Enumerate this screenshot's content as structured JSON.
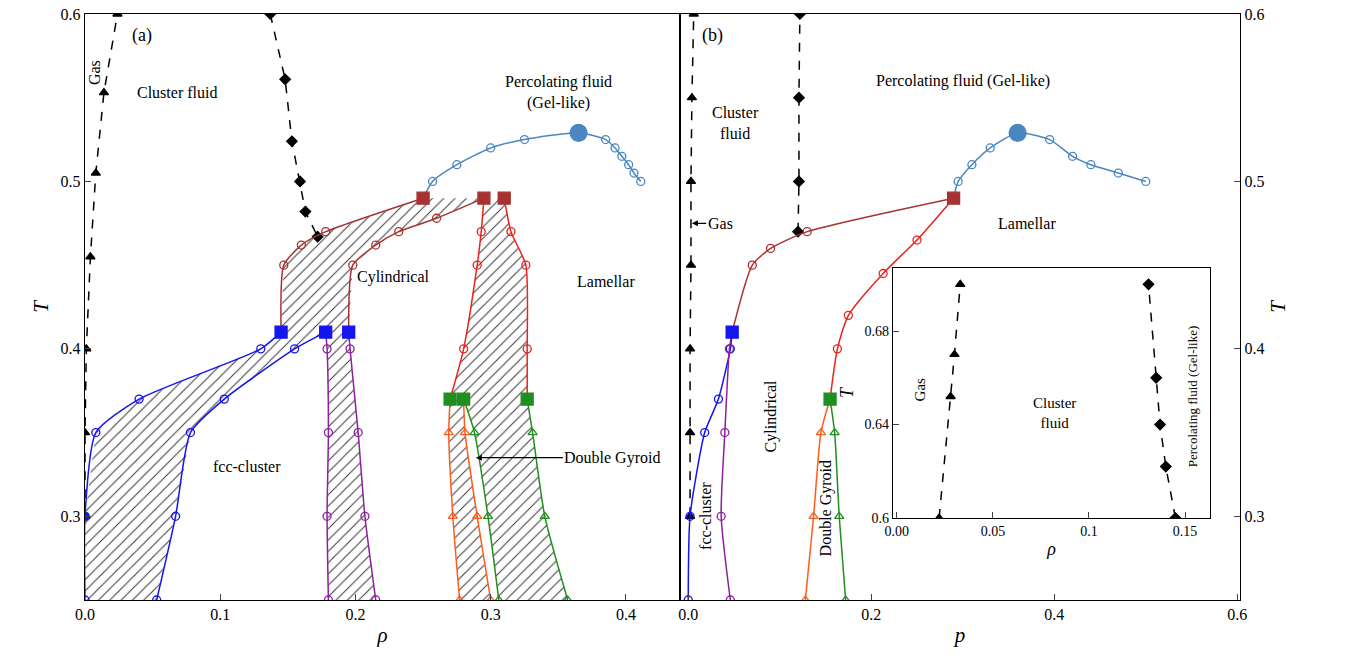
{
  "chart_data": [
    {
      "type": "scatter",
      "title": "(a)",
      "xlabel": "ρ",
      "ylabel": "T",
      "xlim": [
        0,
        0.44
      ],
      "ylim": [
        0.25,
        0.6
      ],
      "xticks": [
        {
          "value": 0,
          "label": "0.0"
        },
        0.1,
        0.2,
        0.3,
        0.4
      ],
      "yticks": [
        0.3,
        0.4,
        0.5,
        0.6
      ],
      "grid": false,
      "hatched_regions": [
        {
          "x": [
            0,
            0,
            0.008,
            0.04,
            0.13,
            0.145,
            0.178,
            0.155,
            0.103,
            0.078,
            0.067,
            0.053
          ],
          "y": [
            0.25,
            0.3,
            0.35,
            0.37,
            0.4,
            0.41,
            0.41,
            0.4,
            0.37,
            0.35,
            0.3,
            0.25
          ]
        },
        {
          "x": [
            0.145,
            0.147,
            0.16,
            0.178,
            0.25,
            0.295,
            0.26,
            0.232,
            0.215,
            0.198,
            0.195
          ],
          "y": [
            0.41,
            0.45,
            0.462,
            0.47,
            0.49,
            0.49,
            0.478,
            0.47,
            0.462,
            0.45,
            0.41
          ]
        },
        {
          "x": [
            0.178,
            0.179,
            0.18,
            0.179,
            0.18,
            0.215,
            0.207,
            0.202,
            0.196,
            0.195
          ],
          "y": [
            0.41,
            0.4,
            0.35,
            0.3,
            0.25,
            0.25,
            0.3,
            0.35,
            0.4,
            0.41
          ]
        },
        {
          "x": [
            0.295,
            0.293,
            0.29,
            0.28,
            0.27,
            0.327,
            0.327,
            0.326,
            0.315,
            0.31
          ],
          "y": [
            0.49,
            0.47,
            0.45,
            0.4,
            0.37,
            0.37,
            0.4,
            0.45,
            0.47,
            0.49
          ]
        },
        {
          "x": [
            0.27,
            0.269,
            0.272,
            0.277,
            0.3,
            0.29,
            0.281,
            0.28
          ],
          "y": [
            0.37,
            0.35,
            0.3,
            0.25,
            0.25,
            0.3,
            0.35,
            0.37
          ]
        },
        {
          "x": [
            0.28,
            0.288,
            0.298,
            0.306,
            0.357,
            0.34,
            0.331,
            0.327
          ],
          "y": [
            0.37,
            0.35,
            0.3,
            0.25,
            0.25,
            0.3,
            0.35,
            0.37
          ]
        }
      ],
      "series": [
        {
          "color": "#000000",
          "marker": "triangle-up",
          "line_style": "dashed",
          "x": [
            0,
            0,
            0.001,
            0.004,
            0.008,
            0.014,
            0.024
          ],
          "values": [
            0.3,
            0.35,
            0.4,
            0.455,
            0.505,
            0.553,
            0.6
          ]
        },
        {
          "color": "#000000",
          "marker": "diamond",
          "line_style": "dashed",
          "x": [
            0.137,
            0.148,
            0.153,
            0.159,
            0.163,
            0.172
          ],
          "values": [
            0.6,
            0.561,
            0.524,
            0.5,
            0.482,
            0.467
          ]
        },
        {
          "color": "#1515f0",
          "marker": "circle-open",
          "line_style": "solid",
          "x": [
            0,
            0,
            0.008,
            0.04,
            0.13,
            0.145
          ],
          "values": [
            0.25,
            0.3,
            0.35,
            0.37,
            0.4,
            0.41
          ]
        },
        {
          "color": "#1515f0",
          "marker": "circle-open",
          "line_style": "solid",
          "x": [
            0.053,
            0.067,
            0.078,
            0.103,
            0.155,
            0.178
          ],
          "values": [
            0.25,
            0.3,
            0.35,
            0.37,
            0.4,
            0.41
          ]
        },
        {
          "color": "#8e1f9e",
          "marker": "circle-open",
          "line_style": "solid",
          "x": [
            0.178,
            0.179,
            0.18,
            0.179,
            0.18
          ],
          "values": [
            0.41,
            0.4,
            0.35,
            0.3,
            0.25
          ]
        },
        {
          "color": "#8e1f9e",
          "marker": "circle-open",
          "line_style": "solid",
          "x": [
            0.195,
            0.196,
            0.202,
            0.207,
            0.215
          ],
          "values": [
            0.41,
            0.4,
            0.35,
            0.3,
            0.25
          ]
        },
        {
          "color": "#a83232",
          "marker": "circle-open",
          "line_style": "solid",
          "x": [
            0.145,
            0.147,
            0.16,
            0.178,
            0.25
          ],
          "values": [
            0.41,
            0.45,
            0.462,
            0.47,
            0.49
          ]
        },
        {
          "color": "#a83232",
          "marker": "circle-open",
          "line_style": "solid",
          "x": [
            0.195,
            0.198,
            0.215,
            0.232,
            0.26,
            0.295
          ],
          "values": [
            0.41,
            0.45,
            0.462,
            0.47,
            0.478,
            0.49
          ]
        },
        {
          "color": "#e8241c",
          "marker": "circle-open",
          "line_style": "solid",
          "x": [
            0.295,
            0.293,
            0.29,
            0.28,
            0.27
          ],
          "values": [
            0.49,
            0.47,
            0.45,
            0.4,
            0.37
          ]
        },
        {
          "color": "#e8241c",
          "marker": "circle-open",
          "line_style": "solid",
          "x": [
            0.31,
            0.315,
            0.326,
            0.327,
            0.327
          ],
          "values": [
            0.49,
            0.47,
            0.45,
            0.4,
            0.37
          ]
        },
        {
          "color": "#ff5b1a",
          "marker": "triangle-up-open",
          "line_style": "solid",
          "x": [
            0.27,
            0.269,
            0.272,
            0.277
          ],
          "values": [
            0.37,
            0.35,
            0.3,
            0.25
          ]
        },
        {
          "color": "#ff5b1a",
          "marker": "triangle-up-open",
          "line_style": "solid",
          "x": [
            0.28,
            0.281,
            0.29,
            0.3
          ],
          "values": [
            0.37,
            0.35,
            0.3,
            0.25
          ]
        },
        {
          "color": "#1f8f1f",
          "marker": "triangle-up-open",
          "line_style": "solid",
          "x": [
            0.28,
            0.288,
            0.298,
            0.306
          ],
          "values": [
            0.37,
            0.35,
            0.3,
            0.25
          ]
        },
        {
          "color": "#1f8f1f",
          "marker": "triangle-up-open",
          "line_style": "solid",
          "x": [
            0.327,
            0.331,
            0.34,
            0.357
          ],
          "values": [
            0.37,
            0.35,
            0.3,
            0.25
          ]
        },
        {
          "color": "#4a86c0",
          "marker": "circle-open",
          "line_style": "solid",
          "x": [
            0.25,
            0.257,
            0.275,
            0.3,
            0.325,
            0.365,
            0.385,
            0.392,
            0.397,
            0.402,
            0.406,
            0.411
          ],
          "values": [
            0.49,
            0.5,
            0.51,
            0.52,
            0.525,
            0.529,
            0.525,
            0.52,
            0.515,
            0.51,
            0.505,
            0.5
          ]
        },
        {
          "color": "#4a86c0",
          "marker": "circle",
          "line_style": "none",
          "x": [
            0.365
          ],
          "values": [
            0.529
          ]
        },
        {
          "color": "#1515f0",
          "marker": "circle",
          "line_style": "none",
          "x": [
            0
          ],
          "values": [
            0.3
          ]
        },
        {
          "color": "#a83232",
          "marker": "square",
          "line_style": "none",
          "x": [
            0.25,
            0.295,
            0.31
          ],
          "values": [
            0.49,
            0.49,
            0.49
          ]
        },
        {
          "color": "#1515f0",
          "marker": "square",
          "line_style": "none",
          "x": [
            0.145,
            0.178,
            0.195
          ],
          "values": [
            0.41,
            0.41,
            0.41
          ]
        },
        {
          "color": "#1f8f1f",
          "marker": "square",
          "line_style": "none",
          "x": [
            0.27,
            0.28,
            0.327
          ],
          "values": [
            0.37,
            0.37,
            0.37
          ]
        }
      ],
      "annotations": [
        {
          "text": "Gas",
          "x": 0.007,
          "y": 0.565,
          "orientation": "vertical"
        },
        {
          "text": "Cluster fluid",
          "x": 0.068,
          "y": 0.553
        },
        {
          "text": [
            "Percolating fluid",
            "(Gel-like)"
          ],
          "x": 0.35,
          "y": 0.553
        },
        {
          "text": "Cylindrical",
          "x": 0.228,
          "y": 0.443
        },
        {
          "text": "Lamellar",
          "x": 0.385,
          "y": 0.44
        },
        {
          "text": "fcc-cluster",
          "x": 0.12,
          "y": 0.33
        },
        {
          "text": "Double Gyroid",
          "x": 0.39,
          "y": 0.335,
          "arrow_to": [
            0.289,
            0.335
          ]
        }
      ]
    },
    {
      "type": "scatter",
      "title": "(b)",
      "xlabel": "p",
      "ylabel": "T",
      "xlim": [
        -0.009,
        0.603
      ],
      "ylim": [
        0.25,
        0.6
      ],
      "xticks": [
        {
          "value": 0,
          "label": "0.0"
        },
        0.2,
        0.4,
        0.6
      ],
      "yticks": [
        0.3,
        0.4,
        0.5,
        0.6
      ],
      "grid": false,
      "series": [
        {
          "color": "#000000",
          "marker": "triangle-up",
          "line_style": "dashed",
          "x": [
            0.002,
            0.002,
            0.002,
            0.003,
            0.003,
            0.004,
            0.006
          ],
          "values": [
            0.3,
            0.35,
            0.4,
            0.45,
            0.5,
            0.55,
            0.6
          ]
        },
        {
          "color": "#000000",
          "marker": "diamond",
          "line_style": "dashed",
          "x": [
            0.12,
            0.121,
            0.121,
            0.122
          ],
          "values": [
            0.47,
            0.5,
            0.55,
            0.6
          ]
        },
        {
          "color": "#1515f0",
          "marker": "circle-open",
          "line_style": "solid",
          "x": [
            0,
            0.002,
            0.018,
            0.033,
            0.046,
            0.048
          ],
          "values": [
            0.25,
            0.3,
            0.35,
            0.37,
            0.4,
            0.41
          ]
        },
        {
          "color": "#8e1f9e",
          "marker": "circle-open",
          "line_style": "solid",
          "x": [
            0.048,
            0.045,
            0.04,
            0.036,
            0.046
          ],
          "values": [
            0.41,
            0.4,
            0.35,
            0.3,
            0.25
          ]
        },
        {
          "color": "#a83232",
          "marker": "circle-open",
          "line_style": "solid",
          "x": [
            0.048,
            0.07,
            0.09,
            0.13,
            0.29
          ],
          "values": [
            0.41,
            0.45,
            0.46,
            0.47,
            0.49
          ]
        },
        {
          "color": "#e8241c",
          "marker": "circle-open",
          "line_style": "solid",
          "x": [
            0.29,
            0.25,
            0.213,
            0.175,
            0.163,
            0.155
          ],
          "values": [
            0.49,
            0.465,
            0.445,
            0.42,
            0.4,
            0.37
          ]
        },
        {
          "color": "#ff5b1a",
          "marker": "triangle-up-open",
          "line_style": "solid",
          "x": [
            0.155,
            0.145,
            0.137,
            0.128
          ],
          "values": [
            0.37,
            0.35,
            0.3,
            0.25
          ]
        },
        {
          "color": "#1f8f1f",
          "marker": "triangle-up-open",
          "line_style": "solid",
          "x": [
            0.155,
            0.16,
            0.165,
            0.172
          ],
          "values": [
            0.37,
            0.35,
            0.3,
            0.25
          ]
        },
        {
          "color": "#4a86c0",
          "marker": "circle-open",
          "line_style": "solid",
          "x": [
            0.29,
            0.295,
            0.31,
            0.33,
            0.36,
            0.395,
            0.42,
            0.44,
            0.47,
            0.5
          ],
          "values": [
            0.49,
            0.5,
            0.51,
            0.52,
            0.529,
            0.525,
            0.515,
            0.51,
            0.505,
            0.5
          ]
        },
        {
          "color": "#4a86c0",
          "marker": "circle",
          "line_style": "none",
          "x": [
            0.36
          ],
          "values": [
            0.529
          ]
        },
        {
          "color": "#a83232",
          "marker": "square",
          "line_style": "none",
          "x": [
            0.29
          ],
          "values": [
            0.49
          ]
        },
        {
          "color": "#1515f0",
          "marker": "square",
          "line_style": "none",
          "x": [
            0.048
          ],
          "values": [
            0.41
          ]
        },
        {
          "color": "#1f8f1f",
          "marker": "square",
          "line_style": "none",
          "x": [
            0.155
          ],
          "values": [
            0.37
          ]
        }
      ],
      "annotations": [
        {
          "text": [
            "Cluster",
            "fluid"
          ],
          "x": 0.052,
          "y": 0.535
        },
        {
          "text": "Percolating fluid (Gel-like)",
          "x": 0.3,
          "y": 0.56
        },
        {
          "text": "Lamellar",
          "x": 0.37,
          "y": 0.475
        },
        {
          "text": "Gas",
          "x": 0.035,
          "y": 0.475,
          "arrow_to": [
            0.004,
            0.475
          ]
        },
        {
          "text": "fcc-cluster",
          "x": 0.019,
          "y": 0.3,
          "orientation": "vertical"
        },
        {
          "text": "Cylindrical",
          "x": 0.09,
          "y": 0.36,
          "orientation": "vertical"
        },
        {
          "text": "Double Gyroid",
          "x": 0.15,
          "y": 0.305,
          "orientation": "vertical"
        }
      ]
    },
    {
      "type": "scatter",
      "xlabel": "ρ",
      "ylabel": "T",
      "xlim": [
        -0.002,
        0.163
      ],
      "ylim": [
        0.6,
        0.707
      ],
      "xticks": [
        {
          "value": 0,
          "label": "0.00"
        },
        0.05,
        {
          "value": 0.1,
          "label": "0.1"
        },
        0.15
      ],
      "yticks": [
        0.6,
        0.64,
        0.68
      ],
      "grid": false,
      "series": [
        {
          "color": "#000000",
          "marker": "triangle-up",
          "line_style": "dashed",
          "x": [
            0.022,
            0.028,
            0.03,
            0.033
          ],
          "values": [
            0.6,
            0.652,
            0.67,
            0.7
          ]
        },
        {
          "color": "#000000",
          "marker": "diamond",
          "line_style": "dashed",
          "x": [
            0.145,
            0.14,
            0.137,
            0.135,
            0.131
          ],
          "values": [
            0.6,
            0.622,
            0.64,
            0.66,
            0.7
          ]
        }
      ],
      "annotations": [
        {
          "text": "Gas",
          "x": 0.012,
          "y": 0.655,
          "orientation": "vertical"
        },
        {
          "text": [
            "Cluster",
            "fluid"
          ],
          "x": 0.082,
          "y": 0.645
        },
        {
          "text": "Percolating fluid (Gel-like)",
          "x": 0.154,
          "y": 0.652,
          "orientation": "vertical"
        }
      ]
    }
  ]
}
